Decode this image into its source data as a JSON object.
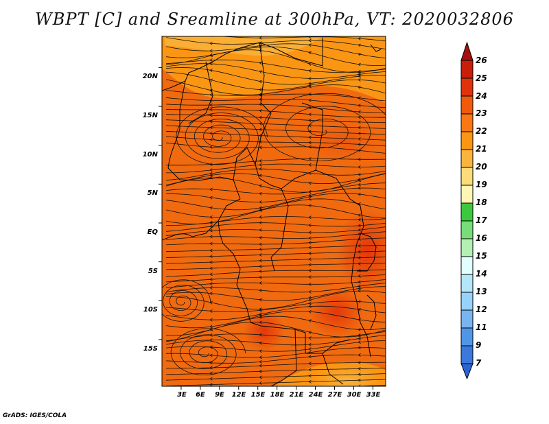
{
  "title": "WBPT [C] and Sreamline at 300hPa, VT: 2020032806",
  "credit": "GrADS: IGES/COLA",
  "map": {
    "lat_range": [
      -21,
      24
    ],
    "lon_range": [
      0,
      35
    ],
    "y_ticks": [
      "20N",
      "15N",
      "10N",
      "5N",
      "EQ",
      "5S",
      "10S",
      "15S"
    ],
    "y_tick_values": [
      20,
      15,
      10,
      5,
      0,
      -5,
      -10,
      -15
    ],
    "x_ticks": [
      "3E",
      "6E",
      "9E",
      "12E",
      "15E",
      "18E",
      "21E",
      "24E",
      "27E",
      "30E",
      "33E"
    ],
    "x_tick_values": [
      3,
      6,
      9,
      12,
      15,
      18,
      21,
      24,
      27,
      30,
      33
    ],
    "field": "Wet-bulb potential temperature at 300hPa",
    "dominant_color": "#f06a10",
    "streamline_color": "#111111"
  },
  "colorbar": {
    "labels": [
      "26",
      "25",
      "24",
      "23",
      "22",
      "21",
      "20",
      "19",
      "18",
      "17",
      "16",
      "15",
      "14",
      "13",
      "12",
      "11",
      "9",
      "7"
    ],
    "colors": [
      "#a50f0f",
      "#c81e0a",
      "#e1320a",
      "#f05a0a",
      "#fa7814",
      "#fa9614",
      "#fab43c",
      "#fadc78",
      "#fff5b4",
      "#3cc83c",
      "#78dc78",
      "#b4f0b4",
      "#e1ffff",
      "#b4e6fa",
      "#96d2fa",
      "#78b4f0",
      "#5096e6",
      "#3c78dc",
      "#2864d2"
    ]
  }
}
